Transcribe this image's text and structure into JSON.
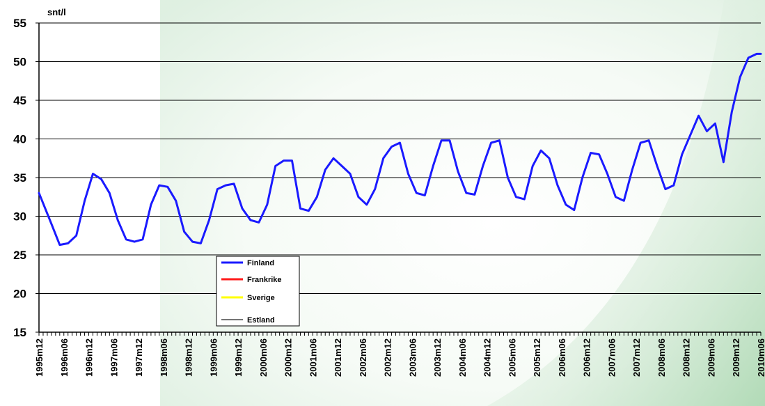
{
  "chart_data": {
    "type": "line",
    "ylabel": "snt/l",
    "ylim": [
      15,
      55
    ],
    "yticks": [
      15,
      20,
      25,
      30,
      35,
      40,
      45,
      50,
      55
    ],
    "grid": "horizontal",
    "legend_position": "bottom-left",
    "xlim": [
      "1995m12",
      "2010m06"
    ],
    "xticks": [
      "1995m12",
      "1996m06",
      "1996m12",
      "1997m06",
      "1997m12",
      "1998m06",
      "1998m12",
      "1999m06",
      "1999m12",
      "2000m06",
      "2000m12",
      "2001m06",
      "2001m12",
      "2002m06",
      "2002m12",
      "2003m06",
      "2003m12",
      "2004m06",
      "2004m12",
      "2005m06",
      "2005m12",
      "2006m06",
      "2006m12",
      "2007m06",
      "2007m12",
      "2008m06",
      "2008m12",
      "2009m06",
      "2009m12",
      "2010m06"
    ],
    "series": [
      {
        "name": "Finland",
        "color": "#1a1aff",
        "width": 3,
        "points": [
          [
            "1995m12",
            33
          ],
          [
            "1996m03",
            29
          ],
          [
            "1996m05",
            26.3
          ],
          [
            "1996m07",
            26.5
          ],
          [
            "1996m09",
            27.5
          ],
          [
            "1996m11",
            32
          ],
          [
            "1997m01",
            35.5
          ],
          [
            "1997m03",
            34.8
          ],
          [
            "1997m05",
            33
          ],
          [
            "1997m07",
            29.5
          ],
          [
            "1997m09",
            27
          ],
          [
            "1997m11",
            26.7
          ],
          [
            "1998m01",
            27
          ],
          [
            "1998m03",
            31.5
          ],
          [
            "1998m05",
            34
          ],
          [
            "1998m07",
            33.8
          ],
          [
            "1998m09",
            32
          ],
          [
            "1998m11",
            28
          ],
          [
            "1999m01",
            26.7
          ],
          [
            "1999m03",
            26.5
          ],
          [
            "1999m05",
            29.5
          ],
          [
            "1999m07",
            33.5
          ],
          [
            "1999m09",
            34
          ],
          [
            "1999m11",
            34.2
          ],
          [
            "2000m01",
            31
          ],
          [
            "2000m03",
            29.5
          ],
          [
            "2000m05",
            29.2
          ],
          [
            "2000m07",
            31.5
          ],
          [
            "2000m09",
            36.5
          ],
          [
            "2000m11",
            37.2
          ],
          [
            "2001m01",
            37.2
          ],
          [
            "2001m03",
            31
          ],
          [
            "2001m05",
            30.7
          ],
          [
            "2001m07",
            32.5
          ],
          [
            "2001m09",
            36
          ],
          [
            "2001m11",
            37.5
          ],
          [
            "2002m01",
            36.5
          ],
          [
            "2002m03",
            35.5
          ],
          [
            "2002m05",
            32.5
          ],
          [
            "2002m07",
            31.5
          ],
          [
            "2002m09",
            33.5
          ],
          [
            "2002m11",
            37.5
          ],
          [
            "2003m01",
            39
          ],
          [
            "2003m03",
            39.5
          ],
          [
            "2003m05",
            35.5
          ],
          [
            "2003m07",
            33
          ],
          [
            "2003m09",
            32.7
          ],
          [
            "2003m11",
            36.5
          ],
          [
            "2004m01",
            39.8
          ],
          [
            "2004m03",
            39.8
          ],
          [
            "2004m05",
            35.8
          ],
          [
            "2004m07",
            33
          ],
          [
            "2004m09",
            32.8
          ],
          [
            "2004m11",
            36.5
          ],
          [
            "2005m01",
            39.5
          ],
          [
            "2005m03",
            39.8
          ],
          [
            "2005m05",
            35
          ],
          [
            "2005m07",
            32.5
          ],
          [
            "2005m09",
            32.2
          ],
          [
            "2005m11",
            36.5
          ],
          [
            "2006m01",
            38.5
          ],
          [
            "2006m03",
            37.5
          ],
          [
            "2006m05",
            34
          ],
          [
            "2006m07",
            31.5
          ],
          [
            "2006m09",
            30.8
          ],
          [
            "2006m11",
            35
          ],
          [
            "2007m01",
            38.2
          ],
          [
            "2007m03",
            38
          ],
          [
            "2007m05",
            35.5
          ],
          [
            "2007m07",
            32.5
          ],
          [
            "2007m09",
            32
          ],
          [
            "2007m11",
            36
          ],
          [
            "2008m01",
            39.5
          ],
          [
            "2008m03",
            39.8
          ],
          [
            "2008m05",
            36.5
          ],
          [
            "2008m07",
            33.5
          ],
          [
            "2008m09",
            34
          ],
          [
            "2008m11",
            38
          ],
          [
            "2009m01",
            40.5
          ],
          [
            "2009m03",
            43
          ],
          [
            "2009m05",
            41
          ],
          [
            "2009m07",
            42
          ],
          [
            "2009m09",
            37
          ],
          [
            "2009m11",
            43.5
          ],
          [
            "2010m01",
            48
          ],
          [
            "2010m03",
            50.5
          ],
          [
            "2010m05",
            51
          ],
          [
            "2010m06",
            51
          ]
        ]
      }
    ]
  },
  "legend": [
    {
      "name": "Finland",
      "color": "#1a1aff",
      "width": 3
    },
    {
      "name": "Frankrike",
      "color": "#ff1a1a",
      "width": 3
    },
    {
      "name": "Sverige",
      "color": "#ffff00",
      "width": 3
    },
    {
      "name": "Estland",
      "color": "#222222",
      "width": 1.2
    }
  ]
}
